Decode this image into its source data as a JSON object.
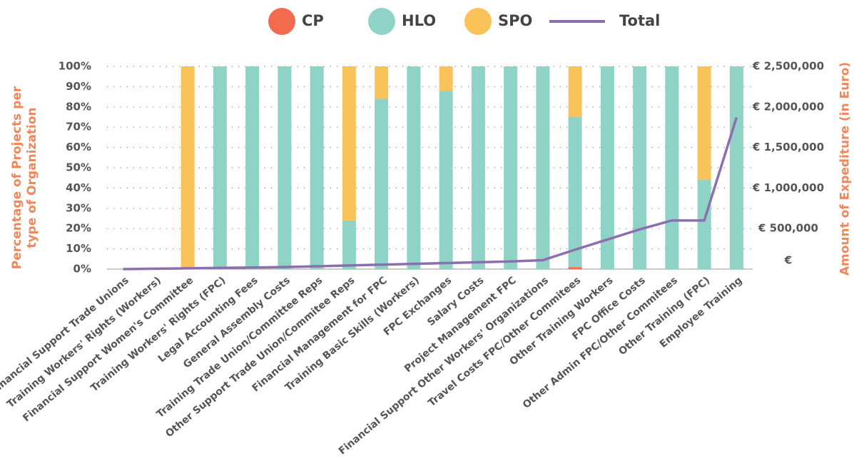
{
  "chart_data": {
    "type": "bar",
    "y_label": "Percentage of Projects per type of Organization",
    "y2_label": "Amount of Expediture (in Euro)",
    "categories": [
      "Financial Support Trade Unions",
      "Training Workers' Rights (Workers)",
      "Financial Support Women's Committee",
      "Training Workers' Rights (FPC)",
      "Legal Accounting Fees",
      "General Assembly Costs",
      "Training Trade Union/Committee Reps",
      "Other Support Trade Union/Commitee Reps",
      "Financial Management for FPC",
      "Training Basic Skills (Workers)",
      "FPC Exchanges",
      "Salary Costs",
      "Project Management FPC",
      "Financial Support Other Workers' Organizations",
      "Travel Costs FPC/Other Commitees",
      "Other Training Workers",
      "FPC Office Costs",
      "Other Admin FPC/Other Commitees",
      "Other Training (FPC)",
      "Employee Training"
    ],
    "series": [
      {
        "name": "CP",
        "color": "#f26b4e",
        "values": [
          0,
          0,
          0,
          0,
          0,
          0,
          0,
          0,
          0,
          0,
          0,
          0,
          0,
          0,
          1,
          0,
          0,
          0,
          0,
          0
        ]
      },
      {
        "name": "HLO",
        "color": "#8fd3c7",
        "values": [
          0,
          0,
          0,
          100,
          100,
          100,
          100,
          24,
          84,
          100,
          88,
          100,
          100,
          100,
          74,
          100,
          100,
          100,
          44,
          100
        ]
      },
      {
        "name": "SPO",
        "color": "#f9c35a",
        "values": [
          0,
          0,
          100,
          0,
          0,
          0,
          0,
          76,
          16,
          0,
          12,
          0,
          0,
          0,
          25,
          0,
          0,
          0,
          56,
          0
        ]
      },
      {
        "name": "Total",
        "color": "#8b6fae",
        "type": "line",
        "axis": "y2",
        "values": [
          0,
          5000,
          10000,
          15000,
          20000,
          25000,
          35000,
          45000,
          55000,
          65000,
          75000,
          85000,
          95000,
          110000,
          240000,
          365000,
          490000,
          600000,
          600000,
          1870000
        ]
      }
    ],
    "stacked": true,
    "ylim": [
      0,
      100
    ],
    "yticks": [
      {
        "value": 0,
        "label": "0%"
      },
      {
        "value": 10,
        "label": "10%"
      },
      {
        "value": 20,
        "label": "20%"
      },
      {
        "value": 30,
        "label": "30%"
      },
      {
        "value": 40,
        "label": "40%"
      },
      {
        "value": 50,
        "label": "50%"
      },
      {
        "value": 60,
        "label": "60%"
      },
      {
        "value": 70,
        "label": "70%"
      },
      {
        "value": 80,
        "label": "80%"
      },
      {
        "value": 90,
        "label": "90%"
      },
      {
        "value": 100,
        "label": "100%"
      }
    ],
    "y2lim": [
      0,
      2500000
    ],
    "y2ticks": [
      {
        "value": 0,
        "label": "€"
      },
      {
        "value": 500000,
        "label": "€ 500,000"
      },
      {
        "value": 1000000,
        "label": "€ 1,000,000"
      },
      {
        "value": 1500000,
        "label": "€ 1,500,000"
      },
      {
        "value": 2000000,
        "label": "€ 2,000,000"
      },
      {
        "value": 2500000,
        "label": "€ 2,500,000"
      }
    ],
    "grid": true,
    "legend": "top"
  }
}
